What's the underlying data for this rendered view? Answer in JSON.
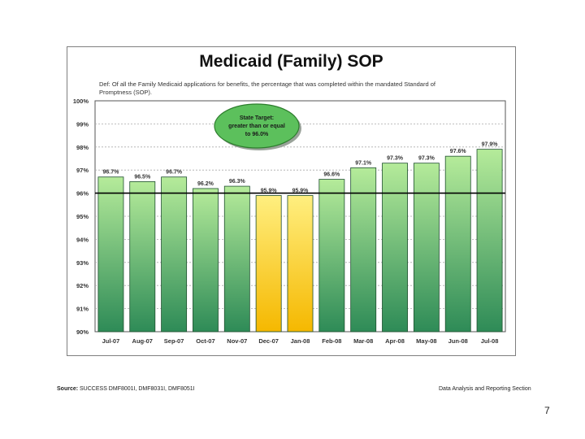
{
  "chart_data": {
    "type": "bar",
    "title": "Medicaid (Family) SOP",
    "definition": "Def: Of all the Family Medicaid applications for benefits, the percentage that was completed within the mandated Standard of Promptness (SOP).",
    "categories": [
      "Jul-07",
      "Aug-07",
      "Sep-07",
      "Oct-07",
      "Nov-07",
      "Dec-07",
      "Jan-08",
      "Feb-08",
      "Mar-08",
      "Apr-08",
      "May-08",
      "Jun-08",
      "Jul-08"
    ],
    "values": [
      96.7,
      96.5,
      96.7,
      96.2,
      96.3,
      95.9,
      95.9,
      96.6,
      97.1,
      97.3,
      97.3,
      97.6,
      97.9
    ],
    "data_labels": [
      "96.7%",
      "96.5%",
      "96.7%",
      "96.2%",
      "96.3%",
      "95.9%",
      "95.9%",
      "96.6%",
      "97.1%",
      "97.3%",
      "97.3%",
      "97.6%",
      "97.9%"
    ],
    "below_target": [
      false,
      false,
      false,
      false,
      false,
      true,
      true,
      false,
      false,
      false,
      false,
      false,
      false
    ],
    "ylim": [
      90,
      100
    ],
    "yticks": [
      90,
      91,
      92,
      93,
      94,
      95,
      96,
      97,
      98,
      99,
      100
    ],
    "ytick_labels": [
      "90%",
      "91%",
      "92%",
      "93%",
      "94%",
      "95%",
      "96%",
      "97%",
      "98%",
      "99%",
      "100%"
    ],
    "target_value": 96.0,
    "target_callout": [
      "State Target:",
      "greater than or equal",
      "to 96.0%"
    ],
    "xlabel": "",
    "ylabel": "",
    "grid": true,
    "colors": {
      "bar_top": "#b5eb9a",
      "bar_bottom": "#2e8b57",
      "yellow_top": "#ffef80",
      "yellow_bottom": "#f5b800",
      "callout": "#5cc05c"
    }
  },
  "footer": {
    "source_label": "Source:",
    "source_text": "SUCCESS DMF8001I, DMF8031I, DMF8051I",
    "section": "Data Analysis and Reporting Section",
    "page_number": "7"
  }
}
